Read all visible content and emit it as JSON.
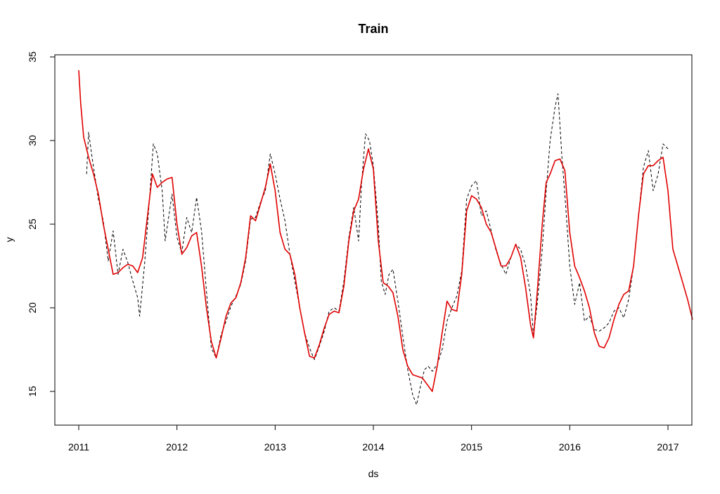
{
  "chart_data": {
    "type": "line",
    "title": "Train",
    "xlabel": "ds",
    "ylabel": "y",
    "xlim": [
      2011.0,
      2017.25
    ],
    "ylim": [
      13.0,
      35.0
    ],
    "x_ticks": [
      "2011",
      "2012",
      "2013",
      "2014",
      "2015",
      "2016",
      "2017"
    ],
    "y_ticks": [
      "15",
      "20",
      "25",
      "30",
      "35"
    ],
    "grid": false,
    "legend": "none",
    "series": [
      {
        "style": "dashed",
        "color": "#000000",
        "points": [
          [
            2011.08,
            28.0
          ],
          [
            2011.1,
            30.5
          ],
          [
            2011.14,
            28.8
          ],
          [
            2011.2,
            26.5
          ],
          [
            2011.25,
            25.2
          ],
          [
            2011.3,
            22.8
          ],
          [
            2011.35,
            24.6
          ],
          [
            2011.4,
            22.0
          ],
          [
            2011.45,
            23.5
          ],
          [
            2011.5,
            22.7
          ],
          [
            2011.55,
            21.6
          ],
          [
            2011.6,
            20.6
          ],
          [
            2011.62,
            19.5
          ],
          [
            2011.67,
            22.6
          ],
          [
            2011.72,
            26.5
          ],
          [
            2011.76,
            29.8
          ],
          [
            2011.8,
            29.2
          ],
          [
            2011.85,
            27.0
          ],
          [
            2011.88,
            24.0
          ],
          [
            2011.95,
            26.8
          ],
          [
            2012.0,
            24.2
          ],
          [
            2012.05,
            23.3
          ],
          [
            2012.1,
            25.4
          ],
          [
            2012.15,
            24.5
          ],
          [
            2012.2,
            26.6
          ],
          [
            2012.25,
            24.6
          ],
          [
            2012.3,
            21.0
          ],
          [
            2012.35,
            17.6
          ],
          [
            2012.4,
            17.0
          ],
          [
            2012.45,
            18.4
          ],
          [
            2012.5,
            19.2
          ],
          [
            2012.55,
            20.1
          ],
          [
            2012.6,
            20.7
          ],
          [
            2012.65,
            21.4
          ],
          [
            2012.7,
            22.8
          ],
          [
            2012.75,
            25.3
          ],
          [
            2012.8,
            25.4
          ],
          [
            2012.85,
            26.3
          ],
          [
            2012.9,
            27.0
          ],
          [
            2012.95,
            29.2
          ],
          [
            2013.0,
            28.0
          ],
          [
            2013.05,
            26.5
          ],
          [
            2013.1,
            25.2
          ],
          [
            2013.15,
            23.2
          ],
          [
            2013.2,
            21.6
          ],
          [
            2013.25,
            20.0
          ],
          [
            2013.3,
            18.5
          ],
          [
            2013.35,
            17.6
          ],
          [
            2013.4,
            16.9
          ],
          [
            2013.45,
            17.7
          ],
          [
            2013.5,
            18.6
          ],
          [
            2013.55,
            19.8
          ],
          [
            2013.6,
            20.0
          ],
          [
            2013.65,
            19.8
          ],
          [
            2013.7,
            21.6
          ],
          [
            2013.75,
            24.2
          ],
          [
            2013.8,
            26.0
          ],
          [
            2013.85,
            24.0
          ],
          [
            2013.88,
            27.4
          ],
          [
            2013.92,
            30.4
          ],
          [
            2013.96,
            30.0
          ],
          [
            2014.0,
            28.5
          ],
          [
            2014.05,
            25.0
          ],
          [
            2014.08,
            21.6
          ],
          [
            2014.12,
            20.8
          ],
          [
            2014.16,
            22.0
          ],
          [
            2014.2,
            22.3
          ],
          [
            2014.25,
            20.4
          ],
          [
            2014.3,
            18.3
          ],
          [
            2014.35,
            16.3
          ],
          [
            2014.4,
            14.8
          ],
          [
            2014.44,
            14.2
          ],
          [
            2014.48,
            15.3
          ],
          [
            2014.52,
            16.3
          ],
          [
            2014.56,
            16.5
          ],
          [
            2014.6,
            16.2
          ],
          [
            2014.65,
            16.6
          ],
          [
            2014.7,
            17.5
          ],
          [
            2014.75,
            19.2
          ],
          [
            2014.8,
            20.0
          ],
          [
            2014.85,
            20.7
          ],
          [
            2014.9,
            22.2
          ],
          [
            2014.95,
            26.5
          ],
          [
            2015.0,
            27.3
          ],
          [
            2015.05,
            27.6
          ],
          [
            2015.1,
            25.5
          ],
          [
            2015.15,
            25.8
          ],
          [
            2015.2,
            24.6
          ],
          [
            2015.25,
            23.4
          ],
          [
            2015.3,
            22.6
          ],
          [
            2015.35,
            22.0
          ],
          [
            2015.4,
            23.0
          ],
          [
            2015.45,
            23.8
          ],
          [
            2015.5,
            23.5
          ],
          [
            2015.55,
            22.5
          ],
          [
            2015.6,
            20.8
          ],
          [
            2015.63,
            18.3
          ],
          [
            2015.67,
            20.3
          ],
          [
            2015.72,
            23.5
          ],
          [
            2015.76,
            27.0
          ],
          [
            2015.8,
            30.0
          ],
          [
            2015.85,
            32.0
          ],
          [
            2015.88,
            32.8
          ],
          [
            2015.92,
            29.0
          ],
          [
            2015.96,
            26.0
          ],
          [
            2016.0,
            22.5
          ],
          [
            2016.05,
            20.2
          ],
          [
            2016.1,
            21.5
          ],
          [
            2016.15,
            19.2
          ],
          [
            2016.2,
            19.5
          ],
          [
            2016.25,
            18.7
          ],
          [
            2016.3,
            18.6
          ],
          [
            2016.35,
            18.8
          ],
          [
            2016.4,
            19.1
          ],
          [
            2016.45,
            19.8
          ],
          [
            2016.5,
            20.0
          ],
          [
            2016.55,
            19.4
          ],
          [
            2016.6,
            20.5
          ],
          [
            2016.65,
            22.5
          ],
          [
            2016.7,
            25.5
          ],
          [
            2016.75,
            28.4
          ],
          [
            2016.8,
            29.4
          ],
          [
            2016.85,
            27.0
          ],
          [
            2016.9,
            28.0
          ],
          [
            2016.95,
            29.8
          ],
          [
            2017.0,
            29.5
          ]
        ]
      },
      {
        "style": "solid",
        "color": "#e00000",
        "points": [
          [
            2011.0,
            34.2
          ],
          [
            2011.02,
            32.2
          ],
          [
            2011.05,
            30.2
          ],
          [
            2011.1,
            29.0
          ],
          [
            2011.15,
            28.0
          ],
          [
            2011.2,
            26.8
          ],
          [
            2011.25,
            25.0
          ],
          [
            2011.3,
            23.5
          ],
          [
            2011.35,
            22.0
          ],
          [
            2011.4,
            22.1
          ],
          [
            2011.45,
            22.4
          ],
          [
            2011.5,
            22.6
          ],
          [
            2011.55,
            22.5
          ],
          [
            2011.6,
            22.1
          ],
          [
            2011.65,
            23.0
          ],
          [
            2011.7,
            25.5
          ],
          [
            2011.75,
            28.0
          ],
          [
            2011.8,
            27.2
          ],
          [
            2011.85,
            27.5
          ],
          [
            2011.9,
            27.7
          ],
          [
            2011.95,
            27.8
          ],
          [
            2012.0,
            25.0
          ],
          [
            2012.05,
            23.2
          ],
          [
            2012.1,
            23.6
          ],
          [
            2012.15,
            24.3
          ],
          [
            2012.2,
            24.5
          ],
          [
            2012.25,
            22.5
          ],
          [
            2012.3,
            20.0
          ],
          [
            2012.35,
            18.0
          ],
          [
            2012.4,
            17.0
          ],
          [
            2012.45,
            18.2
          ],
          [
            2012.5,
            19.5
          ],
          [
            2012.55,
            20.3
          ],
          [
            2012.6,
            20.6
          ],
          [
            2012.65,
            21.5
          ],
          [
            2012.7,
            23.0
          ],
          [
            2012.75,
            25.5
          ],
          [
            2012.8,
            25.2
          ],
          [
            2012.85,
            26.2
          ],
          [
            2012.9,
            27.2
          ],
          [
            2012.95,
            28.6
          ],
          [
            2013.0,
            27.0
          ],
          [
            2013.05,
            24.5
          ],
          [
            2013.1,
            23.5
          ],
          [
            2013.15,
            23.2
          ],
          [
            2013.2,
            22.0
          ],
          [
            2013.25,
            20.0
          ],
          [
            2013.3,
            18.5
          ],
          [
            2013.35,
            17.1
          ],
          [
            2013.4,
            17.0
          ],
          [
            2013.45,
            17.8
          ],
          [
            2013.5,
            18.8
          ],
          [
            2013.55,
            19.6
          ],
          [
            2013.6,
            19.8
          ],
          [
            2013.65,
            19.7
          ],
          [
            2013.7,
            21.3
          ],
          [
            2013.75,
            24.0
          ],
          [
            2013.8,
            25.8
          ],
          [
            2013.85,
            26.5
          ],
          [
            2013.9,
            28.3
          ],
          [
            2013.95,
            29.5
          ],
          [
            2014.0,
            28.3
          ],
          [
            2014.05,
            24.0
          ],
          [
            2014.1,
            21.5
          ],
          [
            2014.15,
            21.3
          ],
          [
            2014.2,
            20.9
          ],
          [
            2014.25,
            19.5
          ],
          [
            2014.3,
            17.5
          ],
          [
            2014.35,
            16.5
          ],
          [
            2014.4,
            16.0
          ],
          [
            2014.45,
            15.9
          ],
          [
            2014.5,
            15.8
          ],
          [
            2014.55,
            15.4
          ],
          [
            2014.6,
            15.0
          ],
          [
            2014.65,
            16.5
          ],
          [
            2014.7,
            18.5
          ],
          [
            2014.75,
            20.4
          ],
          [
            2014.8,
            19.9
          ],
          [
            2014.85,
            19.8
          ],
          [
            2014.9,
            22.0
          ],
          [
            2014.95,
            25.8
          ],
          [
            2015.0,
            26.7
          ],
          [
            2015.05,
            26.5
          ],
          [
            2015.1,
            26.0
          ],
          [
            2015.15,
            25.0
          ],
          [
            2015.2,
            24.5
          ],
          [
            2015.25,
            23.5
          ],
          [
            2015.3,
            22.5
          ],
          [
            2015.35,
            22.5
          ],
          [
            2015.4,
            23.0
          ],
          [
            2015.45,
            23.8
          ],
          [
            2015.5,
            23.0
          ],
          [
            2015.55,
            21.2
          ],
          [
            2015.6,
            19.0
          ],
          [
            2015.63,
            18.2
          ],
          [
            2015.67,
            21.0
          ],
          [
            2015.72,
            25.0
          ],
          [
            2015.76,
            27.5
          ],
          [
            2015.8,
            28.0
          ],
          [
            2015.85,
            28.8
          ],
          [
            2015.9,
            28.9
          ],
          [
            2015.95,
            28.2
          ],
          [
            2016.0,
            24.5
          ],
          [
            2016.05,
            22.5
          ],
          [
            2016.1,
            21.8
          ],
          [
            2016.15,
            21.0
          ],
          [
            2016.2,
            20.0
          ],
          [
            2016.25,
            18.5
          ],
          [
            2016.3,
            17.7
          ],
          [
            2016.35,
            17.6
          ],
          [
            2016.4,
            18.2
          ],
          [
            2016.45,
            19.3
          ],
          [
            2016.5,
            20.2
          ],
          [
            2016.55,
            20.8
          ],
          [
            2016.6,
            21.0
          ],
          [
            2016.65,
            22.5
          ],
          [
            2016.7,
            25.5
          ],
          [
            2016.75,
            28.0
          ],
          [
            2016.8,
            28.5
          ],
          [
            2016.85,
            28.5
          ],
          [
            2016.9,
            28.8
          ],
          [
            2016.95,
            29.0
          ],
          [
            2017.0,
            27.0
          ],
          [
            2017.05,
            23.5
          ],
          [
            2017.1,
            22.5
          ],
          [
            2017.15,
            21.5
          ],
          [
            2017.2,
            20.5
          ],
          [
            2017.25,
            19.3
          ]
        ]
      }
    ]
  }
}
